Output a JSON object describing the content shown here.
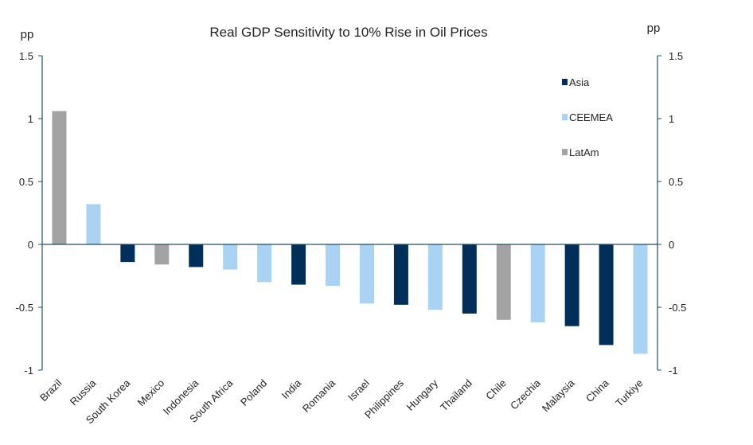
{
  "chart_data": {
    "type": "bar",
    "title": "Real GDP Sensitivity to 10% Rise in Oil Prices",
    "ylabel_left": "pp",
    "ylabel_right": "pp",
    "ylim": [
      -1,
      1.5
    ],
    "yticks": [
      1.5,
      1,
      0.5,
      0,
      -0.5,
      -1
    ],
    "ytick_labels": [
      "1.5",
      "1",
      "0.5",
      "0",
      "-0.5",
      "-1"
    ],
    "grid": false,
    "legend_position": "top-right",
    "legend": [
      {
        "name": "Asia",
        "color": "#022f5a"
      },
      {
        "name": "CEEMEA",
        "color": "#aad2f2"
      },
      {
        "name": "LatAm",
        "color": "#a3a3a3"
      }
    ],
    "categories": [
      "Brazil",
      "Russia",
      "South Korea",
      "Mexico",
      "Indonesia",
      "South Africa",
      "Poland",
      "India",
      "Romania",
      "Israel",
      "Philippines",
      "Hungary",
      "Thailand",
      "Chile",
      "Czechia",
      "Malaysia",
      "China",
      "Turkiye"
    ],
    "groups": [
      "LatAm",
      "CEEMEA",
      "Asia",
      "LatAm",
      "Asia",
      "CEEMEA",
      "CEEMEA",
      "Asia",
      "CEEMEA",
      "CEEMEA",
      "Asia",
      "CEEMEA",
      "Asia",
      "LatAm",
      "CEEMEA",
      "Asia",
      "Asia",
      "CEEMEA"
    ],
    "values": [
      1.06,
      0.32,
      -0.14,
      -0.16,
      -0.18,
      -0.2,
      -0.3,
      -0.32,
      -0.33,
      -0.47,
      -0.48,
      -0.52,
      -0.55,
      -0.6,
      -0.62,
      -0.65,
      -0.8,
      -0.87
    ]
  },
  "colors": {
    "axis": "#1f4e6b"
  }
}
